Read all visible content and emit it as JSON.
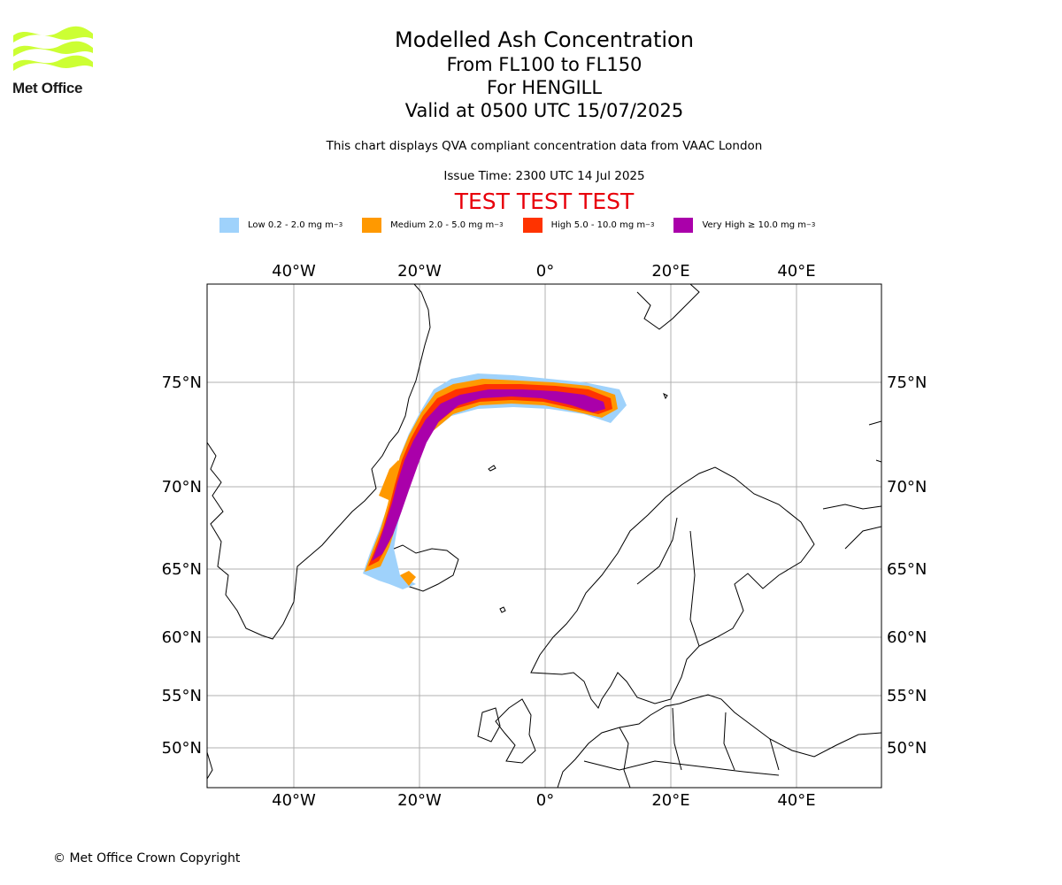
{
  "logo": {
    "name": "Met Office",
    "icon": "met-office-wave-logo",
    "color": "#ccff33"
  },
  "title": {
    "main": "Modelled Ash Concentration",
    "levels": "From FL100 to FL150",
    "volcano": "For HENGILL",
    "valid": "Valid at 0500 UTC 15/07/2025"
  },
  "notes": {
    "source": "This chart displays QVA compliant concentration data from VAAC London",
    "issue_time": "Issue Time: 2300 UTC 14 Jul 2025",
    "test_banner": "TEST TEST TEST"
  },
  "legend": [
    {
      "label": "Low 0.2 - 2.0 mg m",
      "color": "#9fd2fb"
    },
    {
      "label": "Medium 2.0 - 5.0 mg m",
      "color": "#ff9900"
    },
    {
      "label": "High 5.0 - 10.0 mg m",
      "color": "#ff3300"
    },
    {
      "label": "Very High  ≥  10.0 mg m",
      "color": "#aa00aa"
    }
  ],
  "legend_unit_exponent": "−3",
  "map": {
    "lon_ticks": [
      "40°W",
      "20°W",
      "0°",
      "20°E",
      "40°E"
    ],
    "lat_ticks": [
      "75°N",
      "70°N",
      "65°N",
      "60°N",
      "55°N",
      "50°N"
    ],
    "grid_color": "#b0b0b0"
  },
  "copyright": "© Met Office Crown Copyright"
}
